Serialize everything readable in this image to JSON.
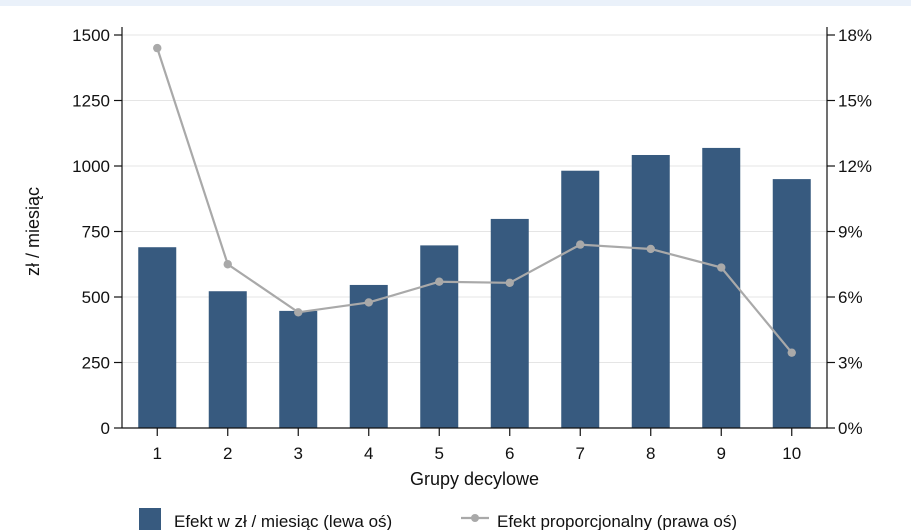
{
  "chart_data": {
    "type": "bar",
    "categories": [
      "1",
      "2",
      "3",
      "4",
      "5",
      "6",
      "7",
      "8",
      "9",
      "10"
    ],
    "series": [
      {
        "name": "Efekt w zł / miesiąc (lewa oś)",
        "type": "bar",
        "axis": "left",
        "values": [
          690,
          522,
          447,
          546,
          697,
          798,
          982,
          1042,
          1069,
          950
        ]
      },
      {
        "name": "Efekt proporcjonalny (prawa oś)",
        "type": "line",
        "axis": "right",
        "values": [
          17.4,
          7.5,
          5.3,
          5.75,
          6.7,
          6.65,
          8.4,
          8.2,
          7.35,
          3.45
        ]
      }
    ],
    "xlabel": "Grupy decylowe",
    "ylabel": "zł / miesiąc",
    "ylim": [
      0,
      1500
    ],
    "y2lim": [
      0,
      18
    ],
    "yticks": [
      "0",
      "250",
      "500",
      "750",
      "1000",
      "1250",
      "1500"
    ],
    "y2ticks": [
      "0%",
      "3%",
      "6%",
      "9%",
      "12%",
      "15%",
      "18%"
    ],
    "grid": true,
    "legend_position": "bottom",
    "colors": {
      "bar": "#375a7f",
      "line": "#a9a9a9",
      "grid": "#e5e5e5",
      "axis": "#111111"
    }
  }
}
